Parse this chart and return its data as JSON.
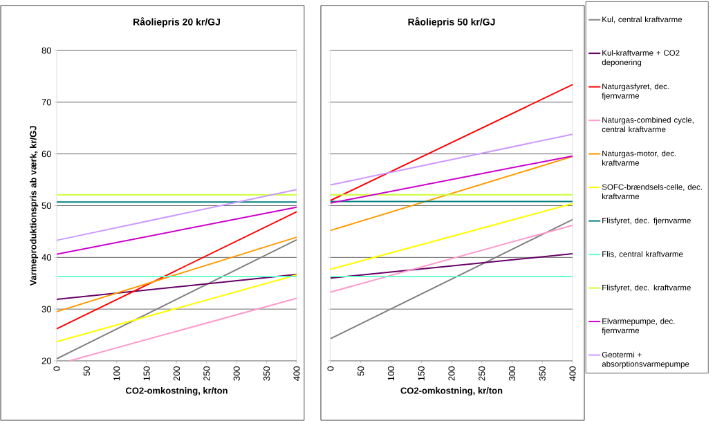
{
  "chart_data": [
    {
      "type": "line",
      "title": "Råoliepris 20 kr/GJ",
      "xlabel": "CO2-omkostning, kr/ton",
      "ylabel": "Varmeproduktionspris ab værk, kr/GJ",
      "xlim": [
        0,
        400
      ],
      "ylim": [
        20,
        80
      ],
      "xticks": [
        0,
        50,
        100,
        150,
        200,
        250,
        300,
        350,
        400
      ],
      "yticks": [
        20,
        30,
        40,
        50,
        60,
        70,
        80
      ],
      "grid": "y",
      "legend": false,
      "series": [
        {
          "color": "#808080",
          "x": [
            0,
            400
          ],
          "values": [
            20.4,
            43.4
          ]
        },
        {
          "color": "#660066",
          "x": [
            0,
            400
          ],
          "values": [
            31.9,
            36.7
          ]
        },
        {
          "color": "#ff0000",
          "x": [
            0,
            400
          ],
          "values": [
            26.2,
            48.8
          ]
        },
        {
          "color": "#ff99cc",
          "x": [
            21,
            400
          ],
          "values": [
            20,
            32.1
          ]
        },
        {
          "color": "#ff9900",
          "x": [
            0,
            400
          ],
          "values": [
            29.5,
            43.9
          ]
        },
        {
          "color": "#ffff00",
          "x": [
            0,
            400
          ],
          "values": [
            23.7,
            36.6
          ]
        },
        {
          "color": "#008080",
          "x": [
            0,
            400
          ],
          "values": [
            50.7,
            50.7
          ]
        },
        {
          "color": "#66ffcc",
          "x": [
            0,
            400
          ],
          "values": [
            36.3,
            36.3
          ]
        },
        {
          "color": "#ccff33",
          "x": [
            0,
            400
          ],
          "values": [
            52.1,
            52.1
          ]
        },
        {
          "color": "#cc00cc",
          "x": [
            0,
            400
          ],
          "values": [
            40.6,
            49.7
          ]
        },
        {
          "color": "#cc99ff",
          "x": [
            0,
            400
          ],
          "values": [
            43.3,
            53.1
          ]
        }
      ]
    },
    {
      "type": "line",
      "title": "Råoliepris 50 kr/GJ",
      "xlabel": "CO2-omkostning, kr/ton",
      "xlim": [
        0,
        400
      ],
      "ylim": [
        20,
        80
      ],
      "xticks": [
        0,
        50,
        100,
        150,
        200,
        250,
        300,
        350,
        400
      ],
      "yticks": [
        20,
        30,
        40,
        50,
        60,
        70,
        80
      ],
      "grid": "y",
      "legend": "right",
      "tick_labels": "x",
      "series": [
        {
          "name": "Kul, central kraftvarme",
          "color": "#808080",
          "x": [
            0,
            400
          ],
          "values": [
            24.3,
            47.3
          ]
        },
        {
          "name": "Kul-kraftvarme + CO2 deponering",
          "color": "#660066",
          "x": [
            0,
            400
          ],
          "values": [
            36.0,
            40.7
          ]
        },
        {
          "name": "Naturgasfyret, dec. fjernvarme",
          "color": "#ff0000",
          "x": [
            0,
            400
          ],
          "values": [
            51.0,
            73.4
          ]
        },
        {
          "name": "Naturgas-combined cycle, central kraftvarme",
          "color": "#ff99cc",
          "x": [
            0,
            400
          ],
          "values": [
            33.3,
            46.2
          ]
        },
        {
          "name": "Naturgas-motor, dec. kraftvarme",
          "color": "#ff9900",
          "x": [
            0,
            400
          ],
          "values": [
            45.2,
            59.5
          ]
        },
        {
          "name": "SOFC-brændsels-celle, dec. kraftvarme",
          "color": "#ffff00",
          "x": [
            0,
            400
          ],
          "values": [
            37.7,
            50.4
          ]
        },
        {
          "name": "Flisfyret, dec. fjernvarme",
          "color": "#008080",
          "x": [
            0,
            400
          ],
          "values": [
            50.8,
            50.8
          ]
        },
        {
          "name": "Flis, central kraftvarme",
          "color": "#66ffcc",
          "x": [
            0,
            400
          ],
          "values": [
            36.3,
            36.3
          ]
        },
        {
          "name": "Flisfyret, dec. kraftvarme",
          "color": "#ccff33",
          "x": [
            0,
            400
          ],
          "values": [
            52.1,
            52.1
          ]
        },
        {
          "name": "Elvarmepumpe, dec. fjernvarme",
          "color": "#cc00cc",
          "x": [
            0,
            400
          ],
          "values": [
            50.5,
            59.6
          ]
        },
        {
          "name": "Geotermi + absorptionsvarmepumpe",
          "color": "#cc99ff",
          "x": [
            0,
            400
          ],
          "values": [
            54.0,
            63.8
          ]
        }
      ]
    }
  ]
}
